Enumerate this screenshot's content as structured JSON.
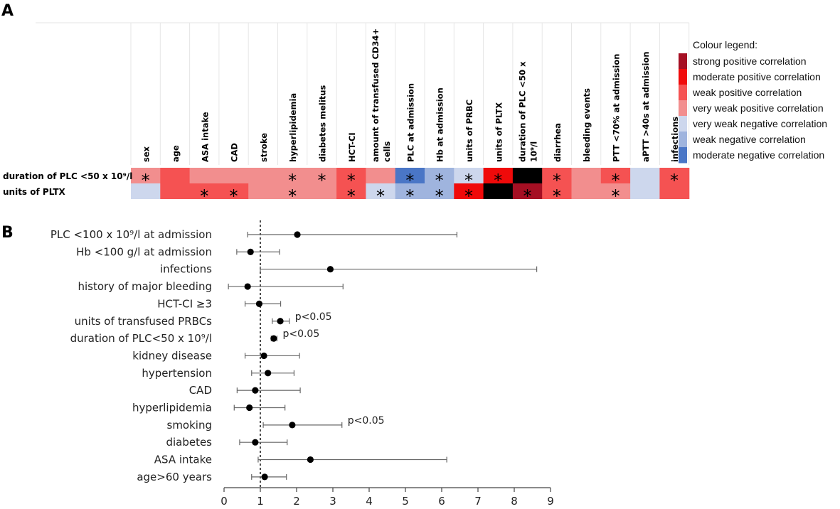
{
  "panels": {
    "a": "A",
    "b": "B"
  },
  "chart_data": [
    {
      "type": "heatmap",
      "title": "",
      "columns": [
        "sex",
        "age",
        "ASA intake",
        "CAD",
        "stroke",
        "hyperlipidemia",
        "diabetes melitus",
        "HCT-CI",
        "amount of transfused CD34+ cells",
        "PLC at admission",
        "Hb at admission",
        "units of PRBC",
        "units of PLTX",
        "duration of PLC <50 x 10⁹/l",
        "diarrhea",
        "bleeding events",
        "PTT <70% at admission",
        "aPTT >40s at admission",
        "infections"
      ],
      "rows": [
        {
          "label": "duration of PLC <50 x 10⁹/l",
          "cells": [
            "vwpos",
            "wpos",
            "vwpos",
            "vwpos",
            "vwpos",
            "vwpos",
            "vwpos",
            "wpos",
            "vwpos",
            "modneg",
            "wneg",
            "vwneg",
            "modpos",
            "self",
            "wpos",
            "vwpos",
            "wpos",
            "vwneg",
            "wpos"
          ],
          "stars": [
            1,
            6,
            7,
            8,
            10,
            11,
            12,
            13,
            15,
            17,
            19
          ]
        },
        {
          "label": "units of PLTX",
          "cells": [
            "vwneg",
            "wpos",
            "wpos",
            "wpos",
            "vwpos",
            "vwpos",
            "vwpos",
            "wpos",
            "vwneg",
            "wneg",
            "wneg",
            "modpos",
            "self",
            "strpos",
            "wpos",
            "vwpos",
            "vwpos",
            "vwneg",
            "wpos"
          ],
          "stars": [
            3,
            4,
            6,
            8,
            9,
            10,
            11,
            12,
            14,
            15,
            17
          ]
        }
      ],
      "legend_title": "Colour legend:",
      "legend": [
        {
          "key": "strpos",
          "label": "strong positive correlation",
          "color": "#a50f23"
        },
        {
          "key": "modpos",
          "label": "moderate positive correlation",
          "color": "#f00a0a"
        },
        {
          "key": "wpos",
          "label": "weak positive correlation",
          "color": "#f55252"
        },
        {
          "key": "vwpos",
          "label": "very weak positive correlation",
          "color": "#f28e8e"
        },
        {
          "key": "vwneg",
          "label": "very weak negative correlation",
          "color": "#cdd7ed"
        },
        {
          "key": "wneg",
          "label": "weak negative correlation",
          "color": "#9fb4de"
        },
        {
          "key": "modneg",
          "label": "moderate negative correlation",
          "color": "#4a76c6"
        }
      ],
      "self_color": "#000000",
      "star_symbol": "*"
    },
    {
      "type": "scatter",
      "subtype": "forest",
      "xlabel": "",
      "ylabel": "",
      "xlim": [
        0,
        9
      ],
      "xticks": [
        0,
        1,
        2,
        3,
        4,
        5,
        6,
        7,
        8,
        9
      ],
      "reference_line": 1,
      "rows": [
        {
          "label": "PLC  <100 x 10⁹/l at admission",
          "est": 2.02,
          "lo": 0.65,
          "hi": 6.42,
          "note": ""
        },
        {
          "label": "Hb <100 g/l at admission",
          "est": 0.73,
          "lo": 0.35,
          "hi": 1.53,
          "note": ""
        },
        {
          "label": "infections",
          "est": 2.93,
          "lo": 1.0,
          "hi": 8.62,
          "note": ""
        },
        {
          "label": "history of major bleeding",
          "est": 0.65,
          "lo": 0.12,
          "hi": 3.28,
          "note": ""
        },
        {
          "label": "HCT-CI ≥3",
          "est": 0.97,
          "lo": 0.58,
          "hi": 1.56,
          "note": ""
        },
        {
          "label": "units of transfused PRBCs",
          "est": 1.55,
          "lo": 1.33,
          "hi": 1.8,
          "note": "p<0.05"
        },
        {
          "label": "duration of PLC<50 x 10⁹/l",
          "est": 1.37,
          "lo": 1.3,
          "hi": 1.46,
          "note": "p<0.05"
        },
        {
          "label": "kidney disease",
          "est": 1.1,
          "lo": 0.58,
          "hi": 2.08,
          "note": ""
        },
        {
          "label": "hypertension",
          "est": 1.21,
          "lo": 0.76,
          "hi": 1.93,
          "note": ""
        },
        {
          "label": "CAD",
          "est": 0.86,
          "lo": 0.36,
          "hi": 2.1,
          "note": ""
        },
        {
          "label": "hyperlipidemia",
          "est": 0.7,
          "lo": 0.28,
          "hi": 1.68,
          "note": ""
        },
        {
          "label": "smoking",
          "est": 1.88,
          "lo": 1.08,
          "hi": 3.25,
          "note": "p<0.05"
        },
        {
          "label": "diabetes",
          "est": 0.86,
          "lo": 0.43,
          "hi": 1.74,
          "note": ""
        },
        {
          "label": "ASA intake",
          "est": 2.38,
          "lo": 0.94,
          "hi": 6.14,
          "note": ""
        },
        {
          "label": "age>60 years",
          "est": 1.12,
          "lo": 0.76,
          "hi": 1.72,
          "note": ""
        }
      ]
    }
  ]
}
